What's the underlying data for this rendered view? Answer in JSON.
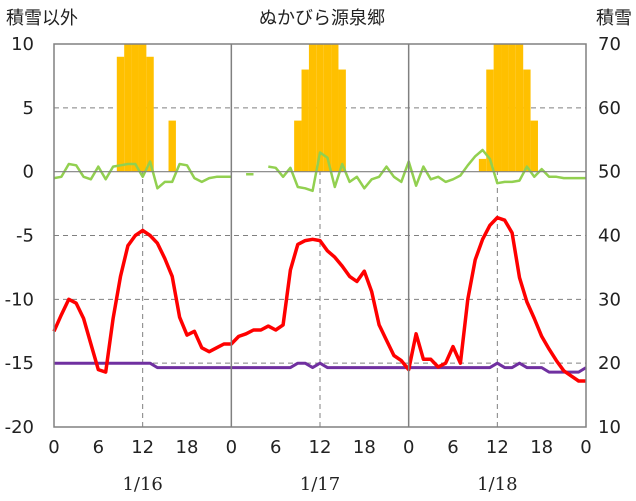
{
  "chart_data": {
    "type": "line",
    "title": "ぬかびら源泉郷",
    "left_axis_label": "積雪以外",
    "right_axis_label": "積雪",
    "left_ylim": [
      -20,
      10
    ],
    "left_yticks": [
      "10",
      "5",
      "0",
      "-5",
      "-10",
      "-15",
      "-20"
    ],
    "right_ylim": [
      10,
      70
    ],
    "right_yticks": [
      "70",
      "60",
      "50",
      "40",
      "30",
      "20",
      "10"
    ],
    "x_tick_labels": [
      "0",
      "6",
      "12",
      "18",
      "0",
      "6",
      "12",
      "18",
      "0",
      "6",
      "12",
      "18",
      "0"
    ],
    "date_labels": [
      "1/16",
      "1/17",
      "1/18"
    ],
    "colors": {
      "precip": "#FFC000",
      "wind": "#92D050",
      "temp": "#FF0000",
      "snow": "#7030A0",
      "grid": "#808080",
      "frame": "#808080"
    },
    "series": [
      {
        "key": "precip",
        "type": "bar",
        "x": [
          9,
          10,
          11,
          12,
          13,
          14,
          15,
          16,
          33,
          34,
          35,
          36,
          37,
          38,
          39,
          40,
          58,
          59,
          60,
          61,
          62,
          63,
          64,
          65
        ],
        "values": [
          9,
          10,
          10,
          10,
          9,
          0,
          0,
          4,
          4,
          8,
          10,
          10,
          10,
          10,
          8,
          0,
          1,
          8,
          10,
          10,
          10,
          10,
          8,
          4
        ]
      },
      {
        "key": "wind",
        "type": "line",
        "values": [
          -0.5,
          -0.4,
          0.6,
          0.5,
          -0.4,
          -0.6,
          0.4,
          -0.6,
          0.4,
          0.5,
          0.6,
          0.6,
          -0.4,
          0.8,
          -1.3,
          -0.8,
          -0.8,
          0.6,
          0.5,
          -0.5,
          -0.8,
          -0.5,
          -0.4,
          -0.4,
          -0.4,
          null,
          -0.2,
          -0.2,
          null,
          0.4,
          0.3,
          -0.4,
          0.3,
          -1.2,
          -1.3,
          -1.5,
          1.5,
          1.1,
          -1.2,
          0.6,
          -0.8,
          -0.4,
          -1.3,
          -0.6,
          -0.4,
          0.4,
          -0.4,
          -0.8,
          0.8,
          -1.1,
          0.4,
          -0.6,
          -0.4,
          -0.8,
          -0.6,
          -0.3,
          0.5,
          1.2,
          1.7,
          1.0,
          -0.9,
          -0.8,
          -0.8,
          -0.7,
          0.4,
          -0.4,
          0.2,
          -0.4,
          -0.4,
          -0.5,
          -0.5,
          -0.5,
          -0.5
        ]
      },
      {
        "key": "temp",
        "type": "line",
        "values": [
          -12.5,
          -11.2,
          -10.0,
          -10.3,
          -11.5,
          -13.5,
          -15.5,
          -15.7,
          -11.5,
          -8.2,
          -5.8,
          -5.0,
          -4.6,
          -5.0,
          -5.6,
          -6.8,
          -8.2,
          -11.4,
          -12.8,
          -12.5,
          -13.8,
          -14.1,
          -13.8,
          -13.5,
          -13.5,
          -12.9,
          -12.7,
          -12.4,
          -12.4,
          -12.1,
          -12.4,
          -12.0,
          -7.7,
          -5.7,
          -5.4,
          -5.3,
          -5.4,
          -6.2,
          -6.7,
          -7.4,
          -8.2,
          -8.6,
          -7.8,
          -9.4,
          -12.0,
          -13.2,
          -14.4,
          -14.8,
          -15.5,
          -12.7,
          -14.7,
          -14.7,
          -15.3,
          -15.0,
          -13.7,
          -15.0,
          -10.0,
          -6.9,
          -5.3,
          -4.2,
          -3.6,
          -3.8,
          -4.8,
          -8.3,
          -10.2,
          -11.5,
          -12.9,
          -13.9,
          -14.8,
          -15.6,
          -16.0,
          -16.4,
          -16.4
        ]
      },
      {
        "key": "snow",
        "type": "line",
        "values": [
          20.0,
          20.0,
          20.0,
          20.0,
          20.0,
          20.0,
          20.0,
          20.0,
          20.0,
          20.0,
          20.0,
          20.0,
          20.0,
          20.0,
          19.3,
          19.3,
          19.3,
          19.3,
          19.3,
          19.3,
          19.3,
          19.3,
          19.3,
          19.3,
          19.3,
          19.3,
          19.3,
          19.3,
          19.3,
          19.3,
          19.3,
          19.3,
          19.3,
          20.0,
          20.0,
          19.3,
          20.0,
          19.3,
          19.3,
          19.3,
          19.3,
          19.3,
          19.3,
          19.3,
          19.3,
          19.3,
          19.3,
          19.3,
          19.3,
          19.3,
          19.3,
          19.3,
          19.3,
          19.3,
          19.3,
          19.3,
          19.3,
          19.3,
          19.3,
          19.3,
          20.0,
          19.3,
          19.3,
          20.0,
          19.3,
          19.3,
          19.3,
          18.6,
          18.6,
          18.6,
          18.6,
          18.6,
          19.3
        ]
      }
    ]
  }
}
